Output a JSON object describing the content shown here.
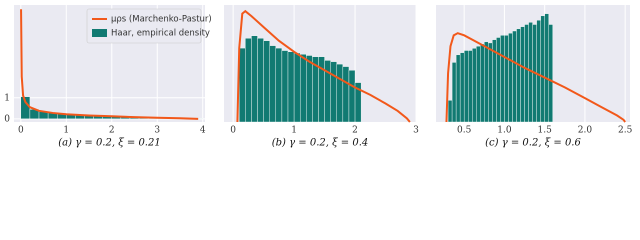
{
  "chart_data": [
    {
      "type": "histogram",
      "caption": "(a)   γ = 0.2, ξ = 0.21",
      "legend": "upper right",
      "grid": true,
      "xlim": [
        -0.15,
        4.05
      ],
      "ylim": [
        -0.15,
        5.4
      ],
      "xticks": [
        0,
        1,
        2,
        3,
        4
      ],
      "yticks": [
        0,
        1
      ],
      "bins": [
        0,
        0.2,
        0.4,
        0.6,
        0.8,
        1.0,
        1.2,
        1.4,
        1.6,
        1.8,
        2.0,
        2.2,
        2.4,
        2.6,
        2.8,
        3.0,
        3.2,
        3.4,
        3.6,
        3.8,
        4.0
      ],
      "values": [
        1.05,
        0.45,
        0.35,
        0.3,
        0.26,
        0.23,
        0.21,
        0.19,
        0.17,
        0.15,
        0.13,
        0.12,
        0.1,
        0.09,
        0.08,
        0.07,
        0.05,
        0.04,
        0.03,
        0.02
      ],
      "name": "Haar, empirical density",
      "color": "#117a72",
      "curve": {
        "name": "μρs (Marchenko-Pastur)",
        "color": "#f2581a",
        "x": [
          0.005,
          0.02,
          0.05,
          0.1,
          0.2,
          0.4,
          0.7,
          1,
          1.5,
          2,
          2.5,
          3,
          3.5,
          3.9
        ],
        "values": [
          5.2,
          2.0,
          1.1,
          0.8,
          0.55,
          0.38,
          0.28,
          0.22,
          0.16,
          0.12,
          0.08,
          0.05,
          0.025,
          0
        ]
      }
    },
    {
      "type": "histogram",
      "caption": "(b)   γ = 0.2, ξ = 0.4",
      "grid": true,
      "xlim": [
        -0.15,
        3.0
      ],
      "ylim": [
        0,
        0.95
      ],
      "xticks": [
        0,
        1,
        2,
        3
      ],
      "yticks": [],
      "bins": [
        0.1,
        0.2,
        0.3,
        0.4,
        0.5,
        0.6,
        0.7,
        0.8,
        0.9,
        1.0,
        1.1,
        1.2,
        1.3,
        1.4,
        1.5,
        1.6,
        1.7,
        1.8,
        1.9,
        2.0,
        2.1
      ],
      "values": [
        0.6,
        0.68,
        0.7,
        0.68,
        0.66,
        0.62,
        0.6,
        0.58,
        0.57,
        0.56,
        0.55,
        0.54,
        0.53,
        0.53,
        0.5,
        0.49,
        0.47,
        0.45,
        0.42,
        0.32
      ],
      "color": "#117a72",
      "curve": {
        "color": "#f2581a",
        "x": [
          0.07,
          0.1,
          0.15,
          0.2,
          0.3,
          0.5,
          0.75,
          1,
          1.25,
          1.5,
          1.75,
          2,
          2.25,
          2.5,
          2.7,
          2.85,
          2.9
        ],
        "values": [
          0,
          0.6,
          0.88,
          0.9,
          0.86,
          0.77,
          0.66,
          0.57,
          0.49,
          0.42,
          0.35,
          0.28,
          0.22,
          0.15,
          0.09,
          0.03,
          0
        ]
      }
    },
    {
      "type": "histogram",
      "caption": "(c)   γ = 0.2, ξ = 0.6",
      "grid": true,
      "xlim": [
        0.15,
        2.56
      ],
      "ylim": [
        0,
        1.08
      ],
      "xticks": [
        {
          "value": 0.5,
          "label": "0.5"
        },
        {
          "value": 1,
          "label": "1.0"
        },
        {
          "value": 1.5,
          "label": "1.5"
        },
        {
          "value": 2,
          "label": "2.0"
        },
        {
          "value": 2.5,
          "label": "2.5"
        }
      ],
      "yticks": [],
      "bins": [
        0.3,
        0.35,
        0.4,
        0.45,
        0.5,
        0.55,
        0.6,
        0.65,
        0.7,
        0.75,
        0.8,
        0.85,
        0.9,
        0.95,
        1.0,
        1.05,
        1.1,
        1.15,
        1.2,
        1.25,
        1.3,
        1.35,
        1.4,
        1.45,
        1.5,
        1.55,
        1.6
      ],
      "values": [
        0.2,
        0.55,
        0.62,
        0.64,
        0.66,
        0.66,
        0.68,
        0.7,
        0.72,
        0.74,
        0.73,
        0.76,
        0.78,
        0.8,
        0.8,
        0.82,
        0.84,
        0.86,
        0.88,
        0.9,
        0.92,
        0.9,
        0.94,
        0.98,
        1.0,
        0.9
      ],
      "color": "#117a72",
      "curve": {
        "color": "#f2581a",
        "x": [
          0.28,
          0.3,
          0.33,
          0.37,
          0.42,
          0.5,
          0.6,
          0.75,
          1,
          1.25,
          1.5,
          1.75,
          2,
          2.2,
          2.4,
          2.48,
          2.5
        ],
        "values": [
          0,
          0.45,
          0.7,
          0.8,
          0.82,
          0.8,
          0.76,
          0.7,
          0.6,
          0.5,
          0.41,
          0.32,
          0.22,
          0.14,
          0.06,
          0.02,
          0
        ]
      }
    }
  ]
}
